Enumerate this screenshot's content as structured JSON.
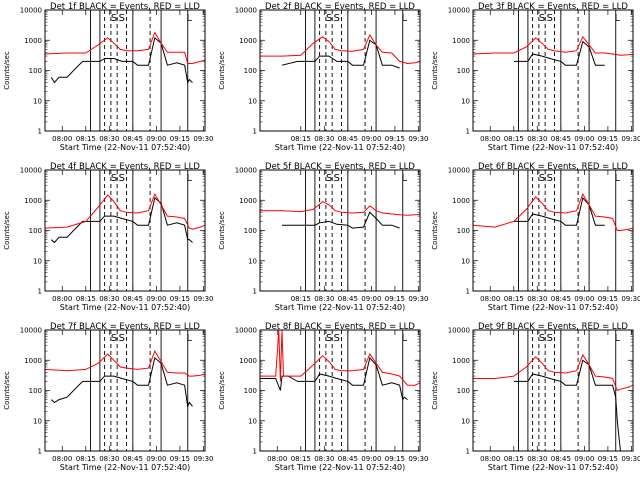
{
  "chart_data": {
    "type": "line",
    "layout": "3x3 grid",
    "y_scale": "log",
    "ylim": [
      1,
      10000
    ],
    "y_ticks": [
      "1",
      "10",
      "100",
      "1000",
      "10000"
    ],
    "ylabel": "Counts/sec",
    "xlabel": "Start Time (22-Nov-11 07:52:40)",
    "x_ticks_a": [
      "08:00",
      "08:15",
      "08:30",
      "08:45",
      "09:00",
      "09:15",
      "09:30"
    ],
    "x_ticks_b": [
      "08:15",
      "08:30",
      "08:45",
      "09:00",
      "09:15",
      "09:30"
    ],
    "x_ticks_c": [
      "08:00",
      "08:15",
      "08:30",
      "08:45",
      "09:00",
      "09:15",
      "09:30"
    ],
    "xlim_minutes": [
      -4,
      98
    ],
    "vertical_lines_solid_min": [
      25,
      31,
      52,
      70,
      87
    ],
    "vertical_lines_dashed_min": [
      34,
      38,
      42,
      48,
      63
    ],
    "markers": [
      "S",
      "S",
      "L"
    ],
    "series_colors": {
      "events": "#000000",
      "lld": "#ff0000"
    },
    "panels": [
      {
        "title": "Det 1f BLACK = Events, RED = LLD",
        "ticks": "a",
        "red": {
          "x": [
            -4,
            10,
            22,
            30,
            36,
            40,
            44,
            48,
            55,
            62,
            66,
            70,
            74,
            80,
            85,
            87,
            90,
            95,
            98
          ],
          "y": [
            350,
            380,
            380,
            700,
            1200,
            800,
            500,
            450,
            450,
            500,
            1800,
            800,
            400,
            400,
            400,
            170,
            170,
            200,
            220
          ]
        },
        "black": {
          "x": [
            0,
            2,
            5,
            10,
            20,
            31,
            34,
            40,
            45,
            52,
            55,
            62,
            66,
            70,
            74,
            80,
            85,
            87,
            88,
            90
          ],
          "y": [
            60,
            40,
            60,
            60,
            200,
            200,
            250,
            250,
            200,
            200,
            150,
            150,
            1200,
            800,
            150,
            180,
            150,
            40,
            50,
            40
          ]
        }
      },
      {
        "title": "Det 2f BLACK = Events, RED = LLD",
        "ticks": "b",
        "red": {
          "x": [
            -4,
            10,
            22,
            30,
            36,
            40,
            44,
            48,
            55,
            62,
            66,
            70,
            74,
            80,
            85,
            90,
            95,
            98
          ],
          "y": [
            300,
            300,
            320,
            800,
            1300,
            900,
            500,
            450,
            430,
            500,
            1500,
            700,
            400,
            380,
            200,
            170,
            180,
            200
          ]
        },
        "black": {
          "x": [
            10,
            20,
            31,
            34,
            40,
            45,
            52,
            55,
            62,
            66,
            70,
            74,
            80,
            85
          ],
          "y": [
            150,
            200,
            200,
            300,
            300,
            200,
            200,
            150,
            150,
            1000,
            700,
            150,
            150,
            120
          ]
        }
      },
      {
        "title": "Det 3f BLACK = Events, RED = LLD",
        "ticks": "c",
        "red": {
          "x": [
            -4,
            10,
            22,
            30,
            36,
            40,
            44,
            48,
            55,
            62,
            66,
            70,
            74,
            80,
            85,
            90,
            95,
            98
          ],
          "y": [
            350,
            380,
            380,
            600,
            1200,
            800,
            500,
            450,
            400,
            450,
            1300,
            700,
            380,
            380,
            350,
            320,
            330,
            340
          ]
        },
        "black": {
          "x": [
            22,
            31,
            34,
            40,
            45,
            52,
            55,
            62,
            66,
            70,
            74,
            80
          ],
          "y": [
            200,
            200,
            350,
            300,
            250,
            200,
            150,
            150,
            900,
            600,
            150,
            150
          ]
        }
      },
      {
        "title": "Det 4f BLACK = Events, RED = LLD",
        "ticks": "a",
        "red": {
          "x": [
            -4,
            10,
            22,
            30,
            36,
            40,
            44,
            48,
            55,
            62,
            66,
            70,
            74,
            80,
            85,
            88,
            90,
            95,
            98
          ],
          "y": [
            120,
            130,
            200,
            600,
            1500,
            900,
            450,
            400,
            380,
            450,
            1600,
            700,
            300,
            280,
            250,
            120,
            110,
            130,
            150
          ]
        },
        "black": {
          "x": [
            0,
            2,
            5,
            10,
            20,
            31,
            34,
            40,
            45,
            52,
            55,
            62,
            66,
            70,
            74,
            80,
            85,
            87,
            88,
            90
          ],
          "y": [
            50,
            40,
            60,
            60,
            200,
            200,
            300,
            300,
            250,
            200,
            150,
            150,
            1200,
            800,
            150,
            180,
            150,
            50,
            50,
            40
          ]
        }
      },
      {
        "title": "Det 5f BLACK = Events, RED = LLD",
        "ticks": "b",
        "red": {
          "x": [
            -4,
            10,
            22,
            30,
            36,
            40,
            44,
            48,
            55,
            62,
            66,
            70,
            74,
            80,
            85,
            90,
            95,
            98
          ],
          "y": [
            450,
            450,
            420,
            500,
            900,
            700,
            450,
            400,
            380,
            400,
            650,
            450,
            380,
            350,
            330,
            320,
            330,
            340
          ]
        },
        "black": {
          "x": [
            10,
            20,
            31,
            34,
            40,
            45,
            52,
            55,
            62,
            66,
            70,
            74,
            80,
            85
          ],
          "y": [
            150,
            150,
            150,
            180,
            200,
            160,
            150,
            120,
            130,
            400,
            250,
            150,
            150,
            120
          ]
        }
      },
      {
        "title": "Det 6f BLACK = Events, RED = LLD",
        "ticks": "c",
        "red": {
          "x": [
            -4,
            10,
            22,
            30,
            36,
            40,
            44,
            48,
            55,
            62,
            66,
            70,
            74,
            80,
            85,
            88,
            90,
            95,
            98
          ],
          "y": [
            150,
            130,
            200,
            500,
            1300,
            800,
            450,
            400,
            380,
            450,
            1600,
            700,
            300,
            280,
            250,
            100,
            100,
            110,
            120
          ]
        },
        "black": {
          "x": [
            22,
            31,
            34,
            40,
            45,
            52,
            55,
            62,
            66,
            70,
            74,
            80
          ],
          "y": [
            200,
            200,
            350,
            300,
            250,
            200,
            150,
            150,
            1200,
            700,
            150,
            150
          ]
        }
      },
      {
        "title": "Det 7f BLACK = Events, RED = LLD",
        "ticks": "a",
        "red": {
          "x": [
            -4,
            10,
            22,
            30,
            36,
            40,
            44,
            48,
            55,
            62,
            66,
            70,
            74,
            80,
            85,
            88,
            90,
            95,
            98
          ],
          "y": [
            500,
            450,
            500,
            800,
            1600,
            1000,
            600,
            550,
            500,
            550,
            2000,
            900,
            400,
            380,
            380,
            300,
            300,
            320,
            350
          ]
        },
        "black": {
          "x": [
            0,
            2,
            5,
            10,
            20,
            31,
            34,
            40,
            45,
            52,
            55,
            62,
            66,
            70,
            74,
            80,
            85,
            87,
            88,
            90
          ],
          "y": [
            50,
            40,
            50,
            60,
            200,
            200,
            300,
            300,
            250,
            200,
            150,
            150,
            1200,
            800,
            150,
            180,
            150,
            30,
            40,
            30
          ]
        }
      },
      {
        "title": "Det 8f BLACK = Events, RED = LLD",
        "ticks": "a",
        "red": {
          "x": [
            -4,
            6,
            8,
            9,
            10,
            11,
            14,
            22,
            30,
            36,
            40,
            44,
            48,
            55,
            62,
            66,
            70,
            74,
            80,
            85,
            90,
            95,
            98
          ],
          "y": [
            300,
            300,
            10000,
            200,
            10000,
            300,
            300,
            300,
            700,
            1400,
            900,
            500,
            450,
            450,
            500,
            1600,
            800,
            400,
            350,
            300,
            150,
            150,
            180
          ]
        },
        "black": {
          "x": [
            -4,
            6,
            9,
            10,
            14,
            20,
            31,
            34,
            40,
            45,
            52,
            55,
            62,
            66,
            70,
            74,
            80,
            85,
            87,
            88,
            90
          ],
          "y": [
            250,
            250,
            100,
            300,
            300,
            200,
            200,
            350,
            300,
            250,
            200,
            150,
            150,
            1200,
            700,
            150,
            180,
            150,
            50,
            60,
            50
          ]
        }
      },
      {
        "title": "Det 9f BLACK = Events, RED = LLD",
        "ticks": "c",
        "red": {
          "x": [
            -4,
            10,
            22,
            30,
            36,
            40,
            44,
            48,
            55,
            62,
            66,
            70,
            74,
            80,
            85,
            88,
            90,
            95,
            98
          ],
          "y": [
            250,
            250,
            300,
            600,
            1300,
            800,
            450,
            400,
            380,
            450,
            1500,
            700,
            300,
            280,
            250,
            100,
            110,
            130,
            150
          ]
        },
        "black": {
          "x": [
            22,
            31,
            34,
            40,
            45,
            52,
            55,
            62,
            66,
            70,
            74,
            80,
            85,
            87,
            88,
            89,
            90
          ],
          "y": [
            200,
            200,
            350,
            300,
            250,
            200,
            150,
            150,
            1000,
            700,
            150,
            150,
            150,
            60,
            10,
            3,
            1
          ]
        }
      }
    ]
  }
}
